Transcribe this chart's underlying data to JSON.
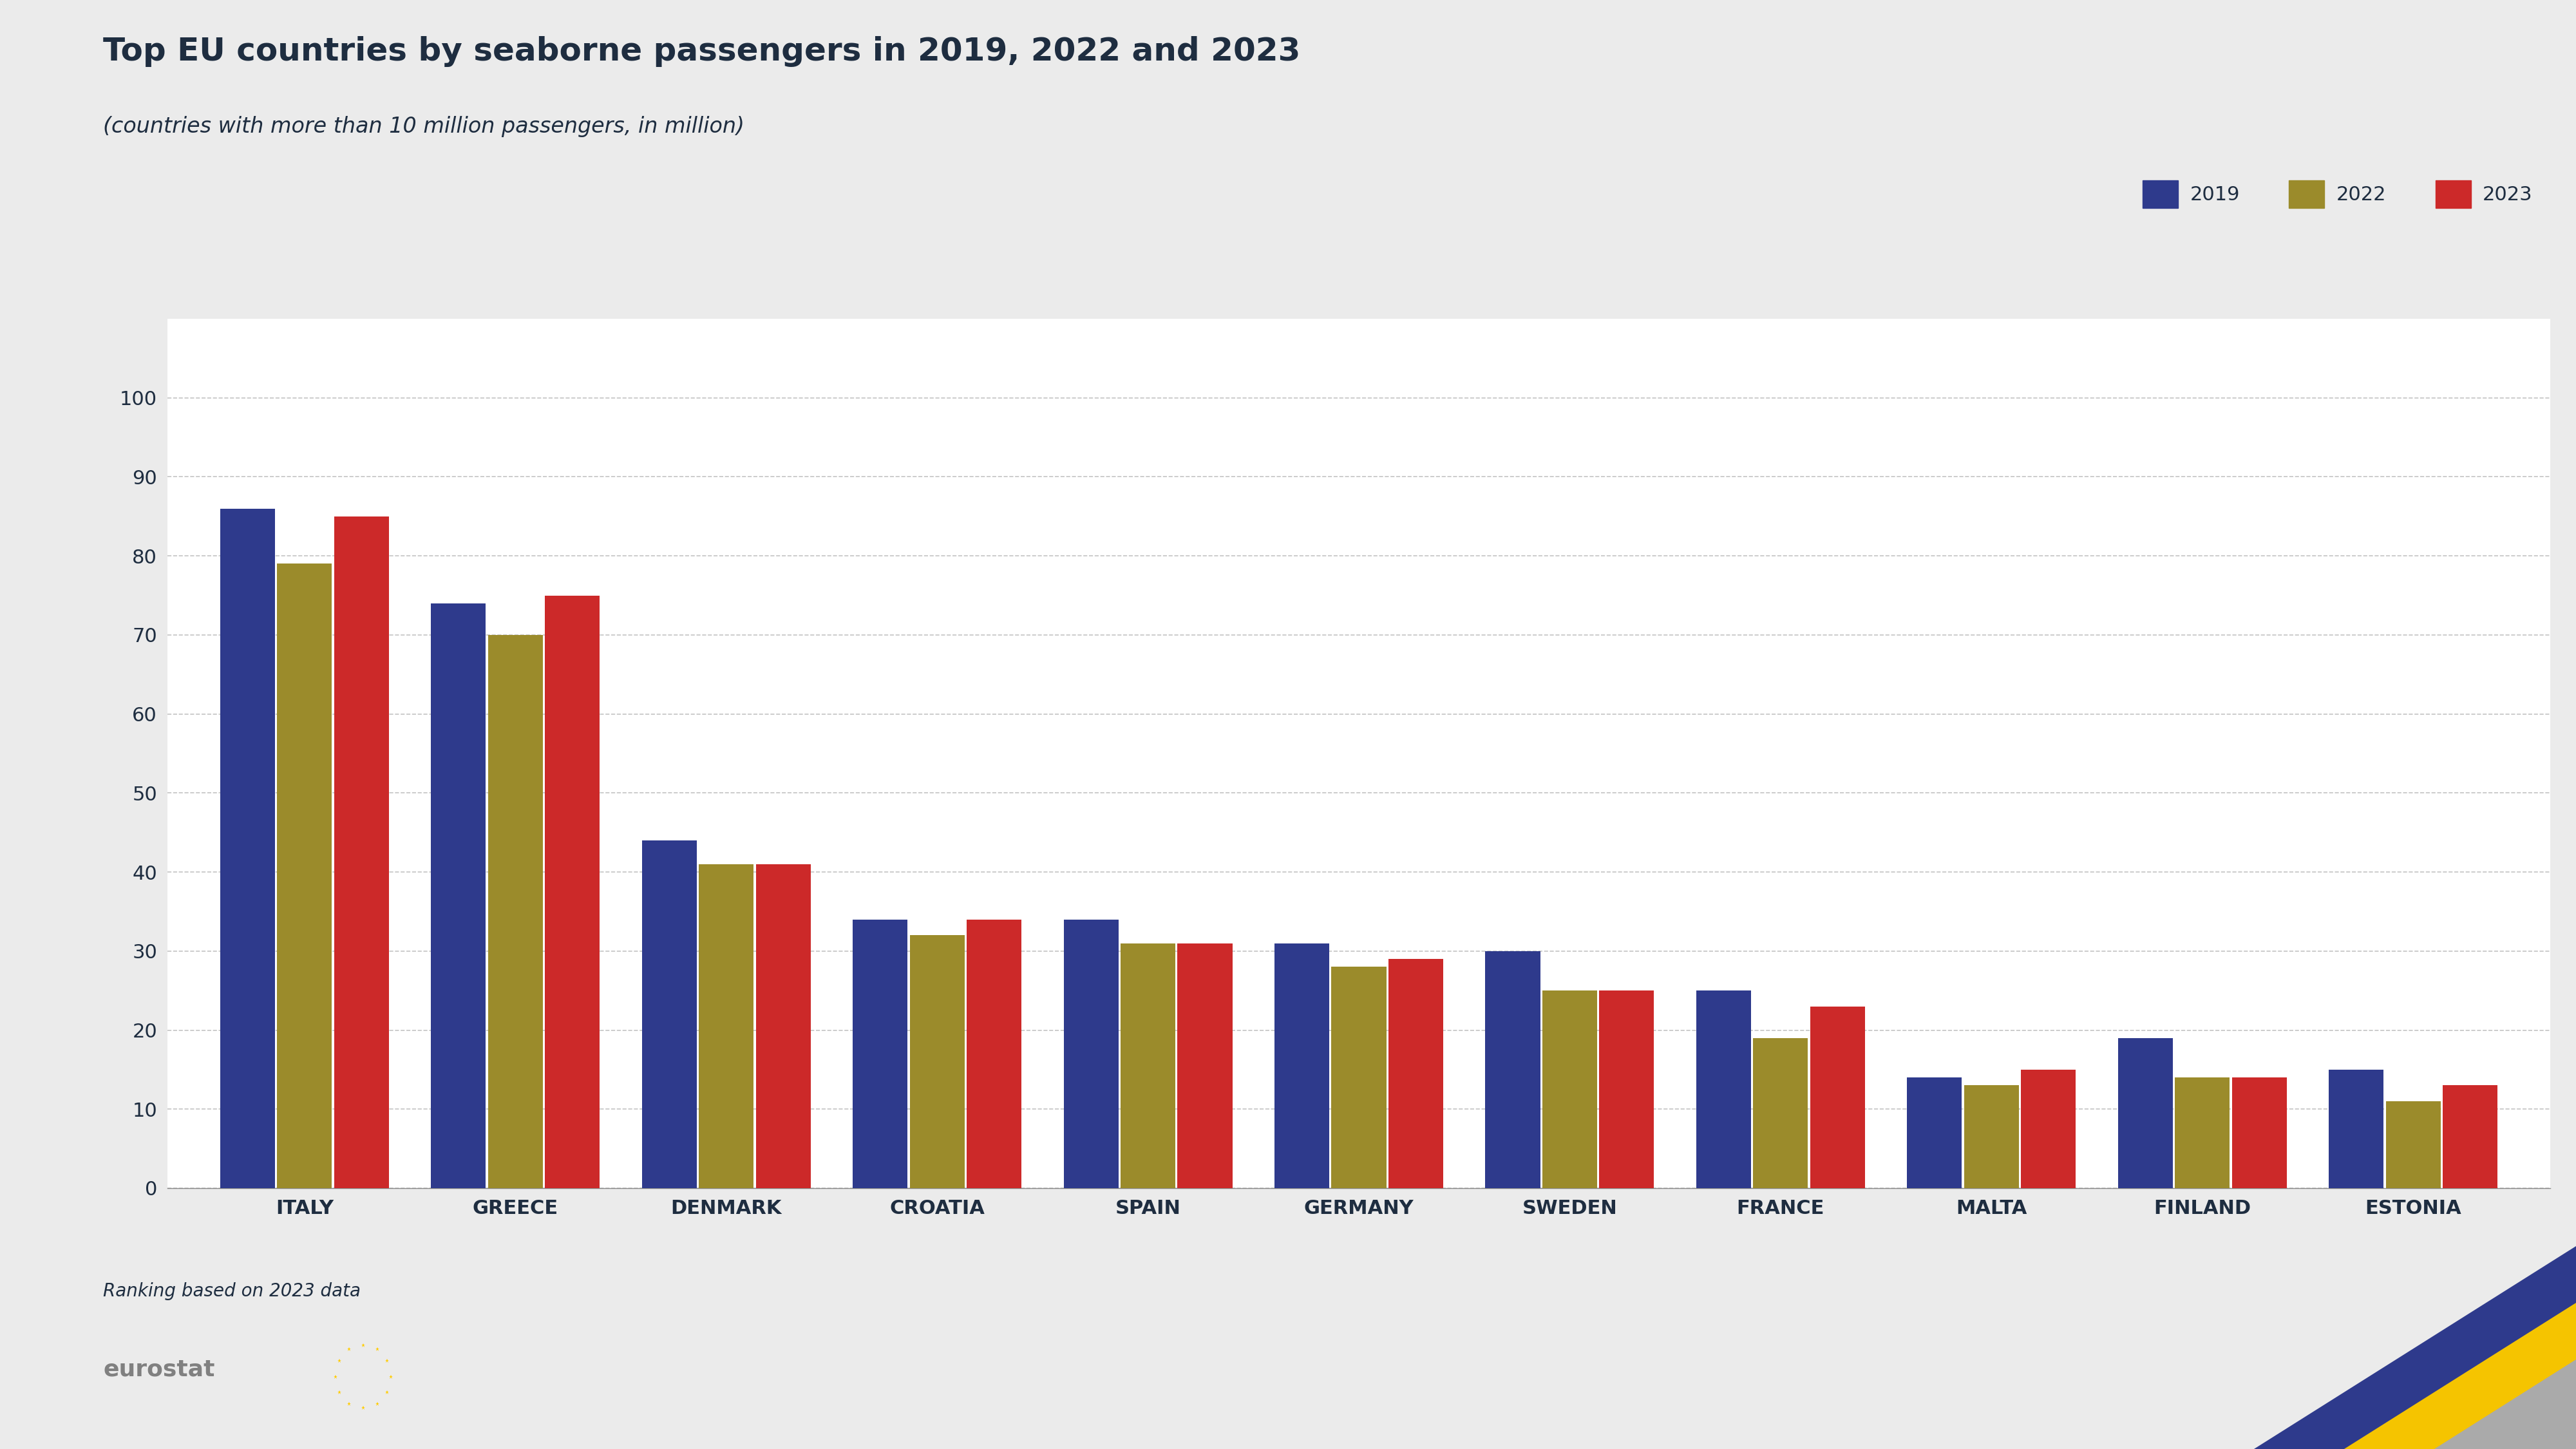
{
  "title": "Top EU countries by seaborne passengers in 2019, 2022 and 2023",
  "subtitle": "(countries with more than 10 million passengers, in million)",
  "categories": [
    "ITALY",
    "GREECE",
    "DENMARK",
    "CROATIA",
    "SPAIN",
    "GERMANY",
    "SWEDEN",
    "FRANCE",
    "MALTA",
    "FINLAND",
    "ESTONIA"
  ],
  "values_2019": [
    86,
    74,
    44,
    34,
    34,
    31,
    30,
    25,
    14,
    19,
    15
  ],
  "values_2022": [
    79,
    70,
    41,
    32,
    31,
    28,
    25,
    19,
    13,
    14,
    11
  ],
  "values_2023": [
    85,
    75,
    41,
    34,
    31,
    29,
    25,
    23,
    15,
    14,
    13
  ],
  "color_2019": "#2E3A8C",
  "color_2022": "#9B8B2B",
  "color_2023": "#CC2929",
  "outer_bg": "#EBEBEB",
  "chart_bg": "#FFFFFF",
  "bottom_bg": "#FFFFFF",
  "title_color": "#1E2D40",
  "tick_color": "#1E2D40",
  "ylim": [
    0,
    110
  ],
  "yticks": [
    0,
    10,
    20,
    30,
    40,
    50,
    60,
    70,
    80,
    90,
    100
  ],
  "footnote": "Ranking based on 2023 data",
  "title_fontsize": 36,
  "subtitle_fontsize": 24,
  "xtick_fontsize": 22,
  "ytick_fontsize": 22,
  "legend_fontsize": 22,
  "footnote_fontsize": 20,
  "eurostat_fontsize": 26
}
